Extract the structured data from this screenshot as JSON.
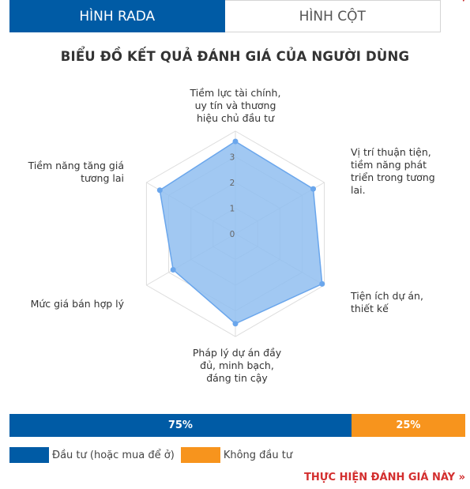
{
  "tabs": [
    {
      "label": "HÌNH RADA",
      "active": true
    },
    {
      "label": "HÌNH CỘT",
      "active": false
    }
  ],
  "chart_data": {
    "type": "radar",
    "title": "BIỂU ĐỒ KẾT QUẢ ĐÁNH GIÁ CỦA NGƯỜI DÙNG",
    "axes": [
      [
        "Tiềm lực tài chính,",
        "uy tín và thương",
        "hiệu chủ đầu tư"
      ],
      [
        "Vị trí thuận tiện,",
        "tiềm năng phát",
        "triển trong tương",
        "lai."
      ],
      [
        "Tiện ích dự án,",
        "thiết kế"
      ],
      [
        "Pháp lý dự án đầy",
        "đủ, minh bạch,",
        "đáng tin cậy"
      ],
      [
        "Mức giá bán hợp lý"
      ],
      [
        "Tiềm năng tăng giá",
        "tương lai"
      ]
    ],
    "values": [
      3.6,
      3.5,
      3.9,
      3.5,
      2.8,
      3.4
    ],
    "ticks": [
      "0",
      "1",
      "2",
      "3"
    ],
    "range": [
      0,
      4
    ],
    "grid": true,
    "colors": {
      "fill": "#91bef0",
      "stroke": "#6aa6ec",
      "point": "#6aa6ec",
      "grid": "#dddddd"
    }
  },
  "distribution": {
    "segments": [
      {
        "label": "75%",
        "value": 75,
        "color": "#005ba5"
      },
      {
        "label": "25%",
        "value": 25,
        "color": "#f7941d"
      }
    ]
  },
  "legend": [
    {
      "label": "Đầu tư (hoặc mua để ở)",
      "color": "#005ba5"
    },
    {
      "label": "Không đầu tư",
      "color": "#f7941d"
    }
  ],
  "cta": {
    "label": "THỰC HIỆN ĐÁNH GIÁ NÀY »"
  }
}
